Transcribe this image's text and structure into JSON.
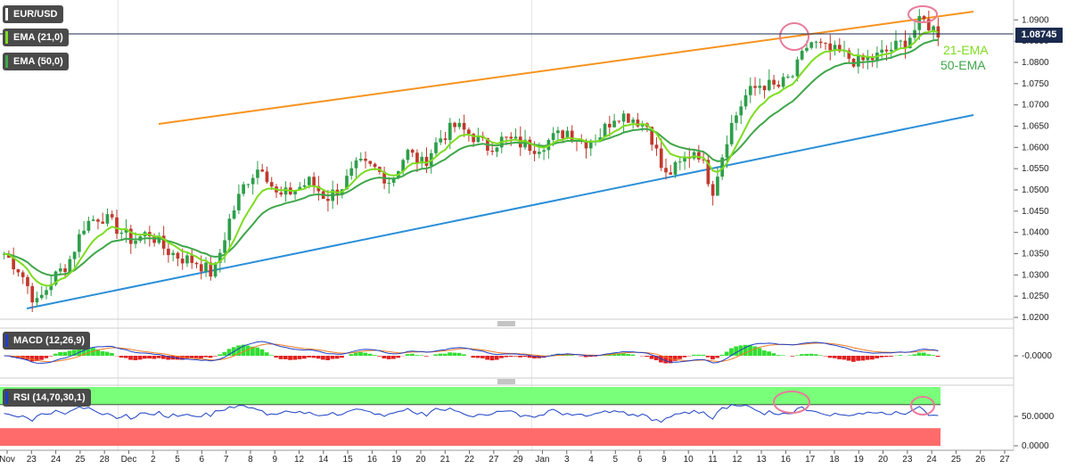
{
  "symbol": "EUR/USD",
  "indicators": {
    "ema21_label": "EMA (21,0)",
    "ema50_label": "EMA (50,0)",
    "macd_label": "MACD (12,26,9)",
    "rsi_label": "RSI (14,70,30,1)"
  },
  "annotations": {
    "ema21": "21-EMA",
    "ema50": "50-EMA"
  },
  "current_price": "1.08745",
  "colors": {
    "bull": "#2e9e4a",
    "bear": "#c0392b",
    "ema21": "#7ddc1f",
    "ema50": "#3fa64a",
    "resistance": "#f7931e",
    "support": "#2b8fd8",
    "circle": "#e87b9a",
    "macd_line": "#1f3fc8",
    "signal_line": "#f07a24",
    "hist_pos": "#33dd33",
    "hist_neg": "#e02020",
    "rsi_line": "#1a3fc4",
    "overbought": "#7aff7a",
    "oversold": "#ff6b6b"
  },
  "chart_data": [
    {
      "type": "candlestick",
      "title": "EUR/USD",
      "ylim": [
        1.02,
        1.093
      ],
      "y_ticks": [
        "1.0900",
        "1.0850",
        "1.0800",
        "1.0750",
        "1.0700",
        "1.0650",
        "1.0600",
        "1.0550",
        "1.0500",
        "1.0450",
        "1.0400",
        "1.0350",
        "1.0300",
        "1.0250",
        "1.0200"
      ],
      "x_ticks": [
        "Nov",
        "23",
        "24",
        "25",
        "28",
        "Dec",
        "2",
        "5",
        "6",
        "7",
        "8",
        "9",
        "12",
        "14",
        "15",
        "16",
        "19",
        "20",
        "21",
        "22",
        "27",
        "29",
        "Jan",
        "3",
        "4",
        "5",
        "6",
        "9",
        "10",
        "11",
        "12",
        "13",
        "16",
        "17",
        "18",
        "19",
        "20",
        "23",
        "24",
        "25",
        "26",
        "27"
      ],
      "series_close_approx": [
        1.035,
        1.031,
        1.023,
        1.029,
        1.033,
        1.042,
        1.044,
        1.041,
        1.038,
        1.04,
        1.036,
        1.034,
        1.033,
        1.03,
        1.043,
        1.052,
        1.056,
        1.048,
        1.05,
        1.052,
        1.048,
        1.051,
        1.056,
        1.055,
        1.052,
        1.059,
        1.056,
        1.062,
        1.065,
        1.063,
        1.06,
        1.062,
        1.061,
        1.06,
        1.062,
        1.064,
        1.061,
        1.063,
        1.068,
        1.067,
        1.065,
        1.053,
        1.056,
        1.06,
        1.05,
        1.064,
        1.072,
        1.075,
        1.074,
        1.077,
        1.085,
        1.083,
        1.082,
        1.08,
        1.081,
        1.083,
        1.085,
        1.09,
        1.087
      ],
      "ema21_label": "21-EMA",
      "ema50_label": "50-EMA",
      "trendlines": [
        {
          "name": "resistance",
          "from": [
            1.066
          ],
          "to": [
            1.0925
          ]
        },
        {
          "name": "support",
          "from": [
            1.022
          ],
          "to": [
            1.068
          ]
        }
      ],
      "last_price": 1.08745
    },
    {
      "type": "line",
      "title": "MACD (12,26,9)",
      "y_ticks": [
        "-0.0000"
      ],
      "series": [
        {
          "name": "MACD"
        },
        {
          "name": "Signal"
        }
      ]
    },
    {
      "type": "line",
      "title": "RSI (14,70,30,1)",
      "y_ticks": [
        "50.0000",
        "0.0000"
      ],
      "ylim": [
        0,
        100
      ],
      "bands": {
        "overbought": 70,
        "oversold": 30
      }
    }
  ]
}
